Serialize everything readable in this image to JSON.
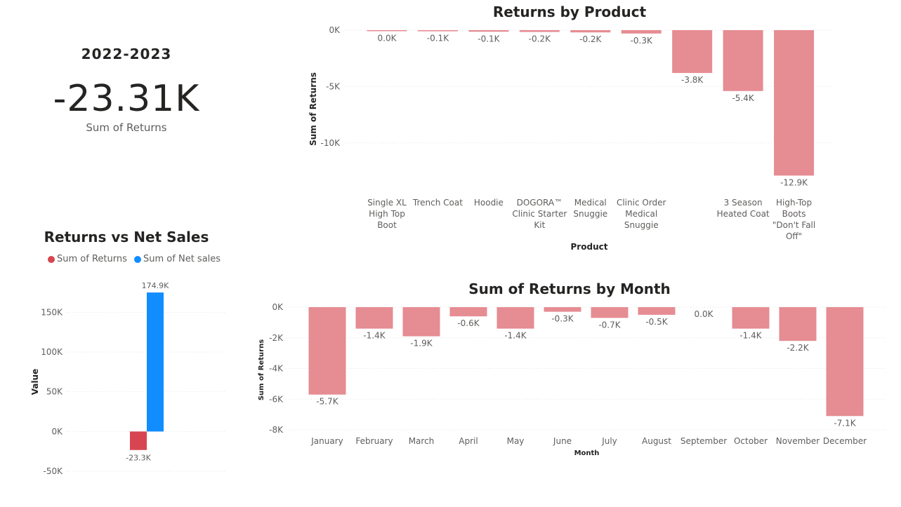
{
  "kpi": {
    "period": "2022-2023",
    "value": "-23.31K",
    "caption": "Sum of Returns"
  },
  "returns_vs_net": {
    "title": "Returns vs Net Sales",
    "legend": [
      {
        "label": "Sum of Returns",
        "color": "#d64550"
      },
      {
        "label": "Sum of Net sales",
        "color": "#118dff"
      }
    ]
  },
  "product_chart": {
    "title": "Returns by Product"
  },
  "month_chart": {
    "title": "Sum of Returns by Month"
  },
  "chart_data": [
    {
      "id": "returns-vs-net",
      "type": "bar",
      "title": "Returns vs Net Sales",
      "ylabel": "Value",
      "ylim": [
        -50,
        175
      ],
      "yticks": [
        -50,
        0,
        50,
        100,
        150
      ],
      "ytick_labels": [
        "-50K",
        "0K",
        "50K",
        "100K",
        "150K"
      ],
      "series": [
        {
          "name": "Sum of Returns",
          "values": [
            -23.3
          ],
          "labels": [
            "-23.3K"
          ],
          "color": "#d64550"
        },
        {
          "name": "Sum of Net sales",
          "values": [
            174.9
          ],
          "labels": [
            "174.9K"
          ],
          "color": "#118dff"
        }
      ],
      "legend": "top-left",
      "grid": true
    },
    {
      "id": "returns-by-product",
      "type": "bar",
      "title": "Returns by Product",
      "xlabel": "Product",
      "ylabel": "Sum of Returns",
      "ylim": [
        -13,
        0
      ],
      "yticks": [
        0,
        -5,
        -10
      ],
      "ytick_labels": [
        "0K",
        "-5K",
        "-10K"
      ],
      "categories": [
        [
          "Single XL",
          "High Top",
          "Boot"
        ],
        [
          "Trench Coat"
        ],
        [
          "Hoodie"
        ],
        [
          "DOGORA™",
          "Clinic Starter",
          "Kit"
        ],
        [
          "Medical",
          "Snuggie"
        ],
        [
          "Clinic Order",
          "Medical",
          "Snuggie"
        ],
        [],
        [
          "3 Season",
          "Heated Coat"
        ],
        [
          "High-Top",
          "Boots",
          "\"Don't Fall",
          "Off\""
        ]
      ],
      "values": [
        -0.02,
        -0.1,
        -0.14,
        -0.16,
        -0.2,
        -0.3,
        -3.8,
        -5.4,
        -12.9
      ],
      "labels": [
        "0.0K",
        "-0.1K",
        "-0.1K",
        "-0.2K",
        "-0.2K",
        "-0.3K",
        "-3.8K",
        "-5.4K",
        "-12.9K"
      ],
      "color": "#e68c93",
      "grid": true
    },
    {
      "id": "returns-by-month",
      "type": "bar",
      "title": "Sum of Returns by Month",
      "xlabel": "Month",
      "ylabel": "Sum of Returns",
      "ylim": [
        -8,
        0
      ],
      "yticks": [
        0,
        -2,
        -4,
        -6,
        -8
      ],
      "ytick_labels": [
        "0K",
        "-2K",
        "-4K",
        "-6K",
        "-8K"
      ],
      "categories": [
        "January",
        "February",
        "March",
        "April",
        "May",
        "June",
        "July",
        "August",
        "September",
        "October",
        "November",
        "December"
      ],
      "values": [
        -5.7,
        -1.4,
        -1.9,
        -0.6,
        -1.4,
        -0.3,
        -0.7,
        -0.5,
        0.0,
        -1.4,
        -2.2,
        -7.1
      ],
      "labels": [
        "-5.7K",
        "-1.4K",
        "-1.9K",
        "-0.6K",
        "-1.4K",
        "-0.3K",
        "-0.7K",
        "-0.5K",
        "0.0K",
        "-1.4K",
        "-2.2K",
        "-7.1K"
      ],
      "color": "#e68c93",
      "grid": true
    }
  ]
}
